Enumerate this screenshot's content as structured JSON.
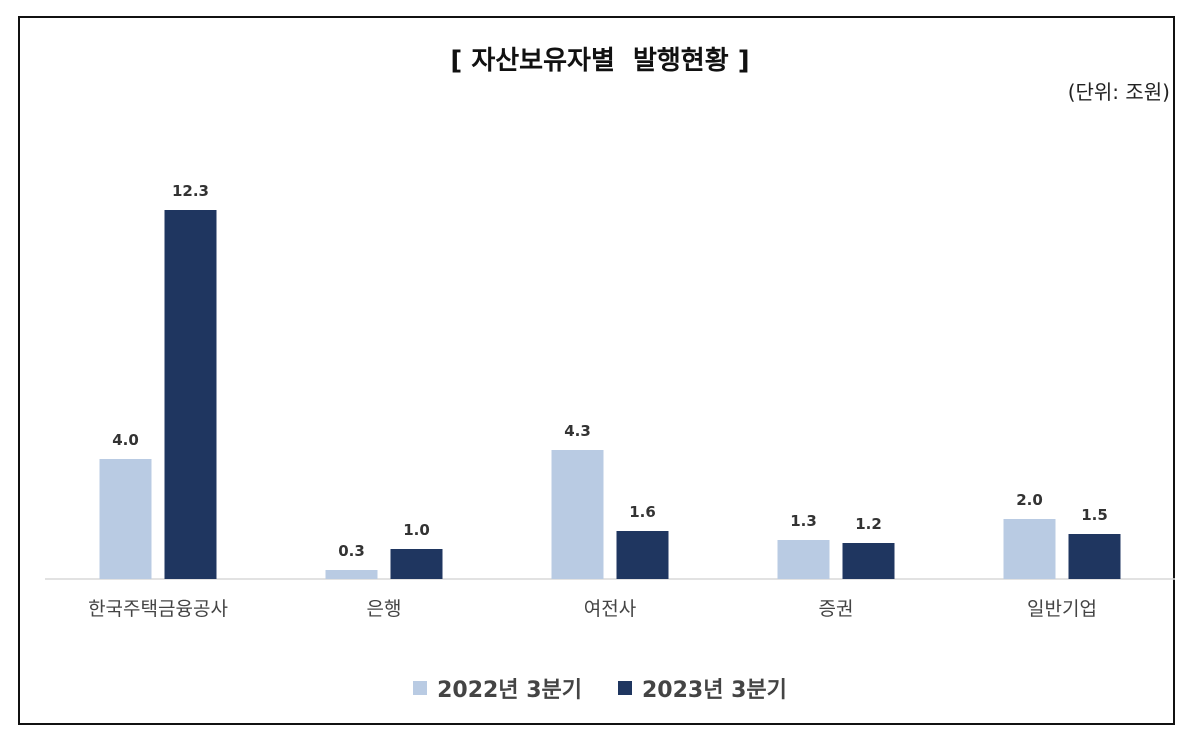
{
  "title": "[ 자산보유자별  발행현황 ]",
  "unit_label": "(단위: 조원)",
  "chart_data": {
    "type": "bar",
    "categories": [
      "한국주택금융공사",
      "은행",
      "여전사",
      "증권",
      "일반기업"
    ],
    "series": [
      {
        "name": "2022년 3분기",
        "values": [
          4.0,
          0.3,
          4.3,
          1.3,
          2.0
        ],
        "color": "#b9cbe3"
      },
      {
        "name": "2023년 3분기",
        "values": [
          12.3,
          1.0,
          1.6,
          1.2,
          1.5
        ],
        "color": "#1f3660"
      }
    ],
    "ylim": [
      0,
      12.3
    ],
    "grid": false,
    "legend": "bottom",
    "data_labels": true
  }
}
